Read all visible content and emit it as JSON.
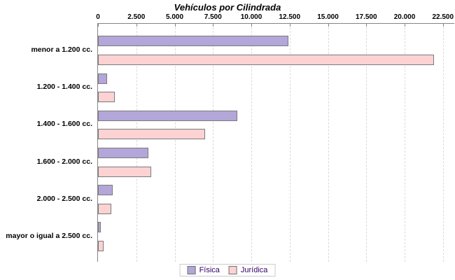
{
  "title": "Vehículos por Cilindrada",
  "legend": {
    "position": "bottom",
    "items": [
      {
        "label": "Física",
        "color": "#b3a6d8"
      },
      {
        "label": "Jurídica",
        "color": "#fcd2d2"
      }
    ]
  },
  "chart_data": {
    "type": "bar",
    "orientation": "horizontal",
    "title": "Vehículos por Cilindrada",
    "categories": [
      "menor a 1.200 cc.",
      "1.200 - 1.400 cc.",
      "1.400 - 1.600 cc.",
      "1.600 - 2.000 cc.",
      "2.000 - 2.500 cc.",
      "mayor o igual a 2.500 cc."
    ],
    "series": [
      {
        "name": "Física",
        "color": "#b3a6d8",
        "values": [
          12400,
          600,
          9100,
          3300,
          950,
          200
        ]
      },
      {
        "name": "Jurídica",
        "color": "#fcd2d2",
        "values": [
          21900,
          1100,
          7000,
          3450,
          850,
          350
        ]
      }
    ],
    "x_axis": {
      "min": 0,
      "max": 22500,
      "tick_interval": 2500,
      "tick_labels": [
        "0",
        "2.500",
        "5.000",
        "7.500",
        "10.000",
        "12.500",
        "15.000",
        "17.500",
        "20.000",
        "22.500"
      ]
    },
    "grid": "vertical-dashed",
    "legend_position": "bottom"
  },
  "colors": {
    "bar_border": "#7b7b7b",
    "axis_line": "#858585",
    "gridline": "#d9d9d9",
    "legend_text": "#330066",
    "legend_border": "#cccccc",
    "background": "#ffffff",
    "title_text": "#000000"
  }
}
